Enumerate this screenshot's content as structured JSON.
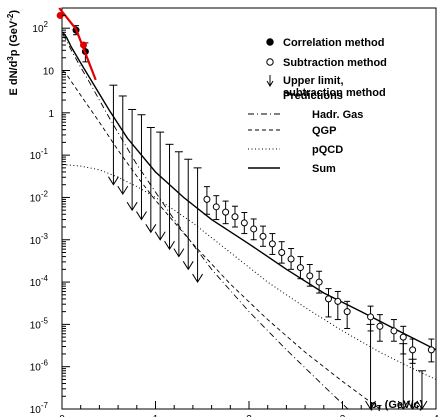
{
  "chart_data": {
    "type": "scatter",
    "xlabel": "p_T (GeV/c)",
    "ylabel": "E dN/d^3p (GeV^-2)",
    "xlim": [
      0,
      4
    ],
    "ylim": [
      1e-07,
      300
    ],
    "y_scale": "log",
    "x_ticks": [
      0,
      1,
      2,
      3,
      4
    ],
    "y_ticks": [
      {
        "value": 1e-07,
        "base": "10",
        "exp": "-7"
      },
      {
        "value": 1e-06,
        "base": "10",
        "exp": "-6"
      },
      {
        "value": 1e-05,
        "base": "10",
        "exp": "-5"
      },
      {
        "value": 0.0001,
        "base": "10",
        "exp": "-4"
      },
      {
        "value": 0.001,
        "base": "10",
        "exp": "-3"
      },
      {
        "value": 0.01,
        "base": "10",
        "exp": "-2"
      },
      {
        "value": 0.1,
        "base": "10",
        "exp": "-1"
      },
      {
        "value": 1,
        "base": "1",
        "exp": ""
      },
      {
        "value": 10,
        "base": "10",
        "exp": ""
      },
      {
        "value": 100,
        "base": "10",
        "exp": "2"
      }
    ],
    "legend": {
      "position": "top-right",
      "items": [
        {
          "label": "Correlation method",
          "marker": "filled-circle"
        },
        {
          "label": "Subtraction method",
          "marker": "open-circle"
        },
        {
          "label": "Upper limit,",
          "label2": "subtraction method",
          "marker": "down-arrow"
        },
        {
          "label": "Predictions",
          "marker": "none"
        },
        {
          "label": "Hadr. Gas",
          "marker": "dash-dot"
        },
        {
          "label": "QGP",
          "marker": "dashed"
        },
        {
          "label": "pQCD",
          "marker": "dotted"
        },
        {
          "label": "Sum",
          "marker": "solid"
        }
      ]
    },
    "series": [
      {
        "name": "Correlation method",
        "marker": "filled-circle",
        "points": [
          {
            "x": 0.15,
            "y": 90,
            "err_lo": 70,
            "err_hi": 115
          },
          {
            "x": 0.25,
            "y": 28,
            "err_lo": 16,
            "err_hi": 45
          }
        ]
      },
      {
        "name": "Subtraction method",
        "marker": "open-circle",
        "points": [
          {
            "x": 1.55,
            "y": 0.009,
            "err_lo": 0.004,
            "err_hi": 0.018
          },
          {
            "x": 1.65,
            "y": 0.006,
            "err_lo": 0.003,
            "err_hi": 0.011
          },
          {
            "x": 1.75,
            "y": 0.0045,
            "err_lo": 0.0024,
            "err_hi": 0.0082
          },
          {
            "x": 1.85,
            "y": 0.0035,
            "err_lo": 0.002,
            "err_hi": 0.0062
          },
          {
            "x": 1.95,
            "y": 0.0025,
            "err_lo": 0.0014,
            "err_hi": 0.0044
          },
          {
            "x": 2.05,
            "y": 0.0018,
            "err_lo": 0.001,
            "err_hi": 0.0031
          },
          {
            "x": 2.15,
            "y": 0.0012,
            "err_lo": 0.0007,
            "err_hi": 0.0021
          },
          {
            "x": 2.25,
            "y": 0.0008,
            "err_lo": 0.00045,
            "err_hi": 0.0014
          },
          {
            "x": 2.35,
            "y": 0.0005,
            "err_lo": 0.00028,
            "err_hi": 0.0009
          },
          {
            "x": 2.45,
            "y": 0.00035,
            "err_lo": 0.0002,
            "err_hi": 0.00062
          },
          {
            "x": 2.55,
            "y": 0.00022,
            "err_lo": 0.00012,
            "err_hi": 0.0004
          },
          {
            "x": 2.65,
            "y": 0.00014,
            "err_lo": 8e-05,
            "err_hi": 0.00026
          },
          {
            "x": 2.75,
            "y": 0.0001,
            "err_lo": 5.5e-05,
            "err_hi": 0.00018
          },
          {
            "x": 2.85,
            "y": 4e-05,
            "err_lo": 1.5e-05,
            "err_hi": 7e-05
          },
          {
            "x": 2.95,
            "y": 3.5e-05,
            "err_lo": 1.3e-05,
            "err_hi": 6e-05
          },
          {
            "x": 3.05,
            "y": 2e-05,
            "err_lo": 8e-06,
            "err_hi": 3.5e-05
          },
          {
            "x": 3.3,
            "y": 1.5e-05,
            "err_lo": 7e-06,
            "err_hi": 2.7e-05
          },
          {
            "x": 3.4,
            "y": 9e-06,
            "err_lo": 4e-06,
            "err_hi": 1.7e-05
          },
          {
            "x": 3.55,
            "y": 7e-06,
            "err_lo": 4e-06,
            "err_hi": 1.3e-05
          },
          {
            "x": 3.65,
            "y": 5e-06,
            "err_lo": 2e-06,
            "err_hi": 9e-06
          },
          {
            "x": 3.75,
            "y": 2.5e-06,
            "err_lo": 1.2e-06,
            "err_hi": 4.5e-06
          },
          {
            "x": 3.95,
            "y": 2.5e-06,
            "err_lo": 1.3e-06,
            "err_hi": 4.5e-06
          }
        ]
      },
      {
        "name": "Upper limit, subtraction method",
        "marker": "down-arrow",
        "points": [
          {
            "x": 0.55,
            "y": 4.5,
            "y_to": 0.02
          },
          {
            "x": 0.65,
            "y": 2.5,
            "y_to": 0.012
          },
          {
            "x": 0.75,
            "y": 1.2,
            "y_to": 0.005
          },
          {
            "x": 0.85,
            "y": 0.9,
            "y_to": 0.003
          },
          {
            "x": 0.95,
            "y": 0.45,
            "y_to": 0.0015
          },
          {
            "x": 1.05,
            "y": 0.35,
            "y_to": 0.001
          },
          {
            "x": 1.15,
            "y": 0.18,
            "y_to": 0.0006
          },
          {
            "x": 1.25,
            "y": 0.12,
            "y_to": 0.0004
          },
          {
            "x": 1.35,
            "y": 0.08,
            "y_to": 0.0002
          },
          {
            "x": 1.45,
            "y": 0.05,
            "y_to": 0.0001
          },
          {
            "x": 3.3,
            "y": 1e-05,
            "y_to": 1e-07
          },
          {
            "x": 3.65,
            "y": 3.5e-06,
            "y_to": 1e-07
          },
          {
            "x": 3.75,
            "y": 1.5e-06,
            "y_to": 1e-07
          },
          {
            "x": 3.85,
            "y": 8e-07,
            "y_to": 1e-07
          }
        ]
      },
      {
        "name": "Hadr. Gas",
        "style": "dash-dot",
        "points": [
          [
            0.01,
            70
          ],
          [
            0.05,
            50
          ],
          [
            0.1,
            30
          ],
          [
            0.2,
            12
          ],
          [
            0.3,
            5
          ],
          [
            0.5,
            0.8
          ],
          [
            0.8,
            0.06
          ],
          [
            1.2,
            0.003
          ],
          [
            1.6,
            0.0002
          ],
          [
            2.0,
            2e-05
          ],
          [
            2.4,
            2.5e-06
          ],
          [
            2.8,
            3.5e-07
          ],
          [
            3.2,
            5e-08
          ]
        ]
      },
      {
        "name": "QGP",
        "style": "dashed",
        "points": [
          [
            0.01,
            10
          ],
          [
            0.05,
            8
          ],
          [
            0.1,
            5.5
          ],
          [
            0.2,
            2.6
          ],
          [
            0.4,
            0.6
          ],
          [
            0.6,
            0.13
          ],
          [
            0.8,
            0.032
          ],
          [
            1.0,
            0.0085
          ],
          [
            1.4,
            0.0008
          ],
          [
            1.8,
            9e-05
          ],
          [
            2.2,
            1.3e-05
          ],
          [
            2.6,
            2.2e-06
          ],
          [
            3.0,
            4.5e-07
          ],
          [
            3.4,
            1e-07
          ]
        ]
      },
      {
        "name": "pQCD",
        "style": "dotted",
        "points": [
          [
            0.01,
            0.06
          ],
          [
            0.2,
            0.055
          ],
          [
            0.4,
            0.045
          ],
          [
            0.6,
            0.03
          ],
          [
            0.8,
            0.018
          ],
          [
            1.0,
            0.01
          ],
          [
            1.4,
            0.0025
          ],
          [
            1.8,
            0.0005
          ],
          [
            2.2,
            0.0001
          ],
          [
            2.6,
            2.5e-05
          ],
          [
            3.0,
            7e-06
          ],
          [
            3.4,
            2.2e-06
          ],
          [
            3.8,
            8e-07
          ],
          [
            4.0,
            5e-07
          ]
        ]
      },
      {
        "name": "Sum",
        "style": "solid",
        "points": [
          [
            0.01,
            80
          ],
          [
            0.05,
            60
          ],
          [
            0.1,
            36
          ],
          [
            0.2,
            15
          ],
          [
            0.3,
            6.5
          ],
          [
            0.5,
            1.2
          ],
          [
            0.7,
            0.25
          ],
          [
            1.0,
            0.04
          ],
          [
            1.3,
            0.01
          ],
          [
            1.6,
            0.003
          ],
          [
            2.0,
            0.0008
          ],
          [
            2.4,
            0.0002
          ],
          [
            2.8,
            5.5e-05
          ],
          [
            3.2,
            2e-05
          ],
          [
            3.6,
            7e-06
          ],
          [
            4.0,
            2.5e-06
          ]
        ]
      },
      {
        "name": "highlight",
        "style": "red",
        "points": [
          [
            -0.03,
            300
          ],
          [
            0.15,
            95
          ],
          [
            0.36,
            6
          ]
        ],
        "markers": [
          [
            -0.02,
            200
          ],
          [
            0.23,
            40
          ]
        ]
      }
    ]
  }
}
